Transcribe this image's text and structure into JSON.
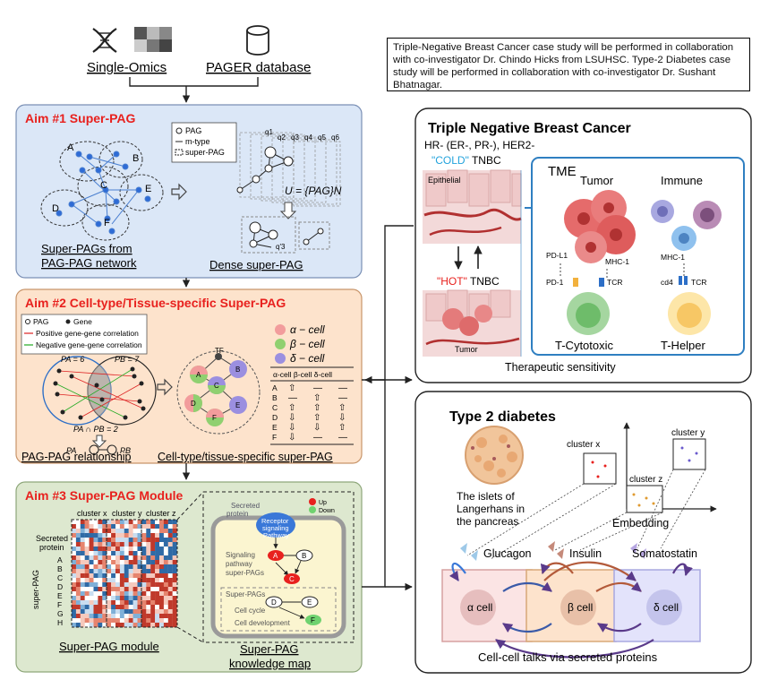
{
  "colors": {
    "aim1_fill": "#dbe7f7",
    "aim2_fill": "#fde3cc",
    "aim3_fill": "#dde8cf",
    "aim_title": "#e8211e",
    "cold_blue": "#23a3dc",
    "hot_red": "#e8211e",
    "tme_border": "#2f7fc1",
    "alpha_cell": "#f29c9c",
    "beta_cell": "#90d070",
    "delta_cell": "#9b8fe0"
  },
  "inputs": {
    "single_omics": "Single-Omics",
    "pager_db": "PAGER database"
  },
  "note": "Triple-Negative Breast Cancer case study will be performed in collaboration with co-investigator Dr. Chindo Hicks from LSUHSC. Type-2 Diabetes case study will be performed in collaboration with co-investigator Dr. Sushant Bhatnagar.",
  "aim1": {
    "title": "Aim #1 Super-PAG",
    "legend": [
      "PAG",
      "m-type",
      "super-PAG"
    ],
    "nodes": [
      "A",
      "B",
      "C",
      "D",
      "E",
      "F"
    ],
    "q_labels": [
      "q1",
      "q2",
      "q3",
      "q4",
      "q5",
      "q6"
    ],
    "formula": "U = {PAG}N",
    "dense_q": "q'3",
    "caption_left_1": "Super-PAGs from",
    "caption_left_2": "PAG-PAG network",
    "caption_right": "Dense super-PAG"
  },
  "aim2": {
    "title": "Aim #2 Cell-type/Tissue-specific Super-PAG",
    "legend": [
      "PAG",
      "Gene",
      "Positive gene-gene correlation",
      "Negative gene-gene correlation"
    ],
    "pa": "PA = 6",
    "pb": "PB = 7",
    "intersection": "PA ∩ PB = 2",
    "rel_a": "PA",
    "rel_b": "PB",
    "tf": "TF",
    "cell_legend": [
      "α − cell",
      "β − cell",
      "δ − cell"
    ],
    "table_header": "α-cell β-cell δ-cell",
    "table_rows": [
      "A",
      "B",
      "C",
      "D",
      "E",
      "F"
    ],
    "caption_left": "PAG-PAG relationship",
    "caption_right": "Cell-type/tissue-specific super-PAG"
  },
  "aim3": {
    "title": "Aim #3 Super-PAG Module",
    "clusters": [
      "cluster x",
      "cluster y",
      "cluster z"
    ],
    "secreted_protein": [
      "Secreted",
      "protein"
    ],
    "rows": [
      "A",
      "B",
      "C",
      "D",
      "E",
      "F",
      "G",
      "H"
    ],
    "y_axis": "super-PAG",
    "caption_left": "Super-PAG module",
    "km_secreted": [
      "Secreted",
      "protein"
    ],
    "km_up": "Up",
    "km_down": "Down",
    "km_receptor": [
      "Receptor",
      "signaling",
      "Pathway"
    ],
    "km_signaling": [
      "Signaling",
      "pathway",
      "super-PAGs"
    ],
    "km_superpags": "Super-PAGs",
    "km_cellcycle": "Cell cycle",
    "km_celldev": "Cell development",
    "km_nodes": [
      "A",
      "B",
      "C",
      "D",
      "E",
      "F"
    ],
    "caption_right_1": "Super-PAG",
    "caption_right_2": "knowledge map"
  },
  "tnbc": {
    "title": "Triple Negative Breast Cancer",
    "subtitle": "HR- (ER-, PR-), HER2-",
    "cold": "\"COLD\"",
    "cold_suffix": " TNBC",
    "hot": "\"HOT\"",
    "hot_suffix": " TNBC",
    "epithelial": "Epithelial",
    "tumor_small": "Tumor",
    "tme": "TME",
    "tumor": "Tumor",
    "immune": "Immune",
    "pdl1": "PD-L1",
    "mhc1_a": "MHC-1",
    "mhc1_b": "MHC-1",
    "pd1": "PD-1",
    "tcr_a": "TCR",
    "cd4": "cd4",
    "tcr_b": "TCR",
    "t_cytotoxic": "T-Cytotoxic",
    "t_helper": "T-Helper",
    "therapeutic": "Therapeutic sensitivity"
  },
  "t2d": {
    "title": "Type 2 diabetes",
    "islets": [
      "The islets of",
      "Langerhans in",
      "the pancreas"
    ],
    "cluster_x": "cluster x",
    "cluster_y": "cluster y",
    "cluster_z": "cluster z",
    "embedding": "Embedding",
    "glucagon": "Glucagon",
    "insulin": "Insulin",
    "somatostatin": "Somatostatin",
    "alpha": "α cell",
    "beta": "β cell",
    "delta": "δ cell",
    "cellcell": "Cell-cell talks via secreted proteins"
  }
}
